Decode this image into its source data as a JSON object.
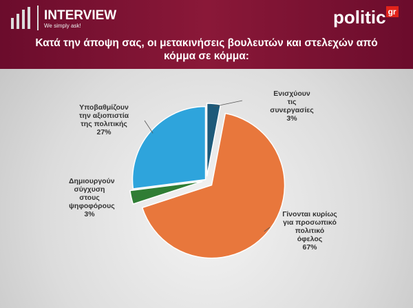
{
  "header": {
    "brand": "INTERVIEW",
    "tagline": "We simply ask!",
    "logo_main": "politic",
    "logo_suffix": "gr"
  },
  "chart_data": {
    "type": "pie",
    "title": "Κατά την άποψη σας, οι μετακινήσεις βουλευτών και στελεχών από κόμμα σε κόμμα:",
    "categories": [
      "Ενισχύουν τις συνεργασίες",
      "Γίνονται κυρίως για προσωπικό πολιτικό όφελος",
      "Δημιουργούν σύγχυση στους ψηφοφόρους",
      "Υποβαθμίζουν την αξιοπιστία της πολιτικής"
    ],
    "values": [
      3,
      67,
      3,
      27
    ],
    "value_labels": [
      "3%",
      "67%",
      "3%",
      "27%"
    ],
    "colors": [
      "#1d5a7a",
      "#e8773c",
      "#2f7d34",
      "#2ea4dc"
    ]
  }
}
